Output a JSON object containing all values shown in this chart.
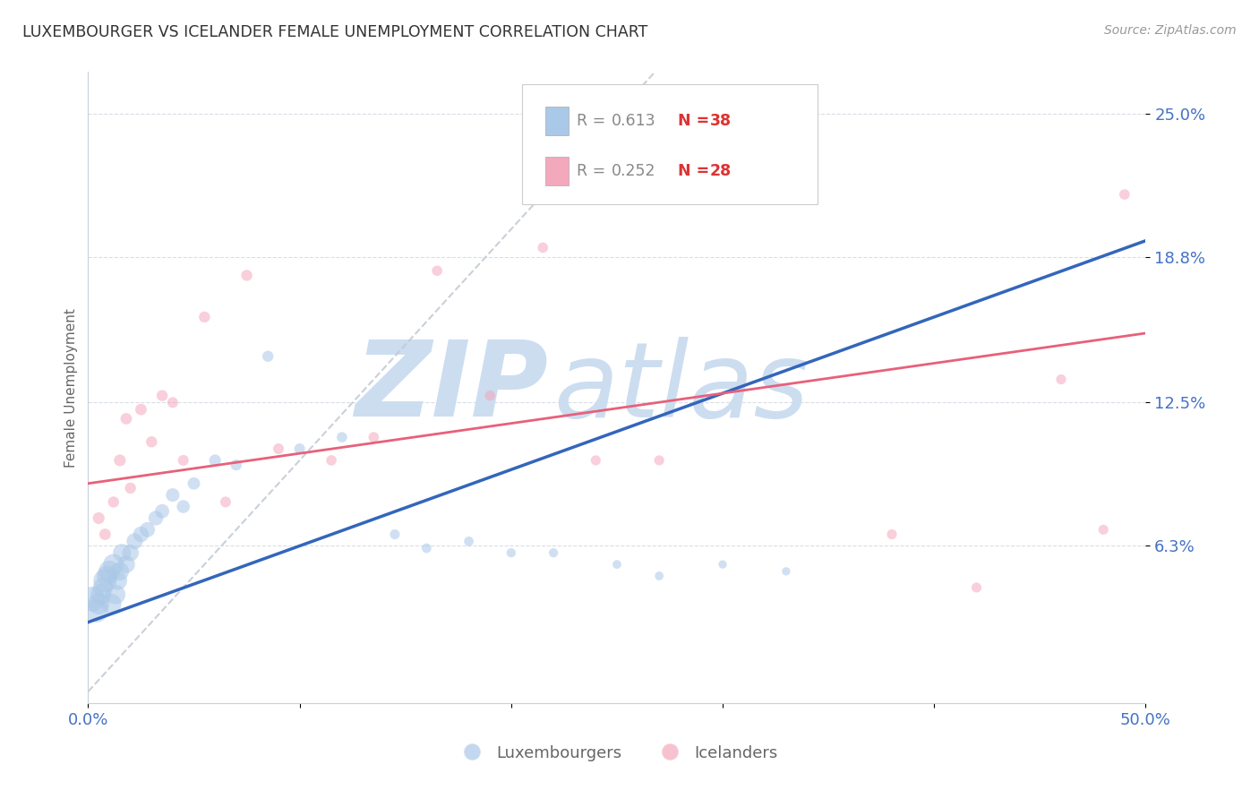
{
  "title": "LUXEMBOURGER VS ICELANDER FEMALE UNEMPLOYMENT CORRELATION CHART",
  "source_text": "Source: ZipAtlas.com",
  "ylabel": "Female Unemployment",
  "xlim": [
    0.0,
    0.5
  ],
  "ylim": [
    -0.005,
    0.268
  ],
  "ytick_values": [
    0.063,
    0.125,
    0.188,
    0.25
  ],
  "ytick_labels": [
    "6.3%",
    "12.5%",
    "18.8%",
    "25.0%"
  ],
  "blue_color": "#aac8e8",
  "pink_color": "#f4a8bc",
  "trend_blue_color": "#3366bb",
  "trend_pink_color": "#e8607a",
  "diagonal_color": "#c0c8d4",
  "watermark_zip_color": "#ccddf0",
  "watermark_atlas_color": "#ccddf0",
  "legend_label1": "Luxembourgers",
  "legend_label2": "Icelanders",
  "legend_r1_val": "0.613",
  "legend_n1_val": "38",
  "legend_r2_val": "0.252",
  "legend_n2_val": "28",
  "r_color": "#888888",
  "n_color": "#dd3333",
  "tick_color": "#4472c4",
  "lux_x": [
    0.002,
    0.004,
    0.005,
    0.006,
    0.007,
    0.008,
    0.009,
    0.01,
    0.011,
    0.012,
    0.013,
    0.014,
    0.015,
    0.016,
    0.018,
    0.02,
    0.022,
    0.025,
    0.028,
    0.032,
    0.035,
    0.04,
    0.045,
    0.05,
    0.06,
    0.07,
    0.085,
    0.1,
    0.12,
    0.145,
    0.16,
    0.18,
    0.2,
    0.22,
    0.25,
    0.27,
    0.3,
    0.33
  ],
  "lux_y": [
    0.04,
    0.035,
    0.038,
    0.042,
    0.045,
    0.048,
    0.05,
    0.052,
    0.038,
    0.055,
    0.042,
    0.048,
    0.052,
    0.06,
    0.055,
    0.06,
    0.065,
    0.068,
    0.07,
    0.075,
    0.078,
    0.085,
    0.08,
    0.09,
    0.1,
    0.098,
    0.145,
    0.105,
    0.11,
    0.068,
    0.062,
    0.065,
    0.06,
    0.06,
    0.055,
    0.05,
    0.055,
    0.052
  ],
  "lux_sizes": [
    400,
    350,
    300,
    280,
    260,
    350,
    280,
    300,
    260,
    280,
    250,
    230,
    220,
    210,
    200,
    180,
    170,
    160,
    150,
    140,
    130,
    120,
    110,
    100,
    90,
    80,
    80,
    75,
    70,
    65,
    60,
    60,
    55,
    55,
    50,
    50,
    45,
    45
  ],
  "ice_x": [
    0.005,
    0.008,
    0.012,
    0.015,
    0.018,
    0.02,
    0.025,
    0.03,
    0.035,
    0.04,
    0.045,
    0.055,
    0.065,
    0.075,
    0.09,
    0.115,
    0.135,
    0.165,
    0.19,
    0.215,
    0.24,
    0.27,
    0.29,
    0.38,
    0.42,
    0.46,
    0.48,
    0.49
  ],
  "ice_y": [
    0.075,
    0.068,
    0.082,
    0.1,
    0.118,
    0.088,
    0.122,
    0.108,
    0.128,
    0.125,
    0.1,
    0.162,
    0.082,
    0.18,
    0.105,
    0.1,
    0.11,
    0.182,
    0.128,
    0.192,
    0.1,
    0.1,
    0.215,
    0.068,
    0.045,
    0.135,
    0.07,
    0.215
  ],
  "ice_sizes": [
    90,
    85,
    80,
    90,
    85,
    80,
    85,
    80,
    80,
    75,
    75,
    80,
    75,
    80,
    75,
    70,
    70,
    70,
    70,
    70,
    65,
    65,
    70,
    65,
    65,
    65,
    65,
    70
  ],
  "lux_trend_y0": 0.03,
  "lux_trend_y1": 0.195,
  "ice_trend_y0": 0.09,
  "ice_trend_y1": 0.155
}
